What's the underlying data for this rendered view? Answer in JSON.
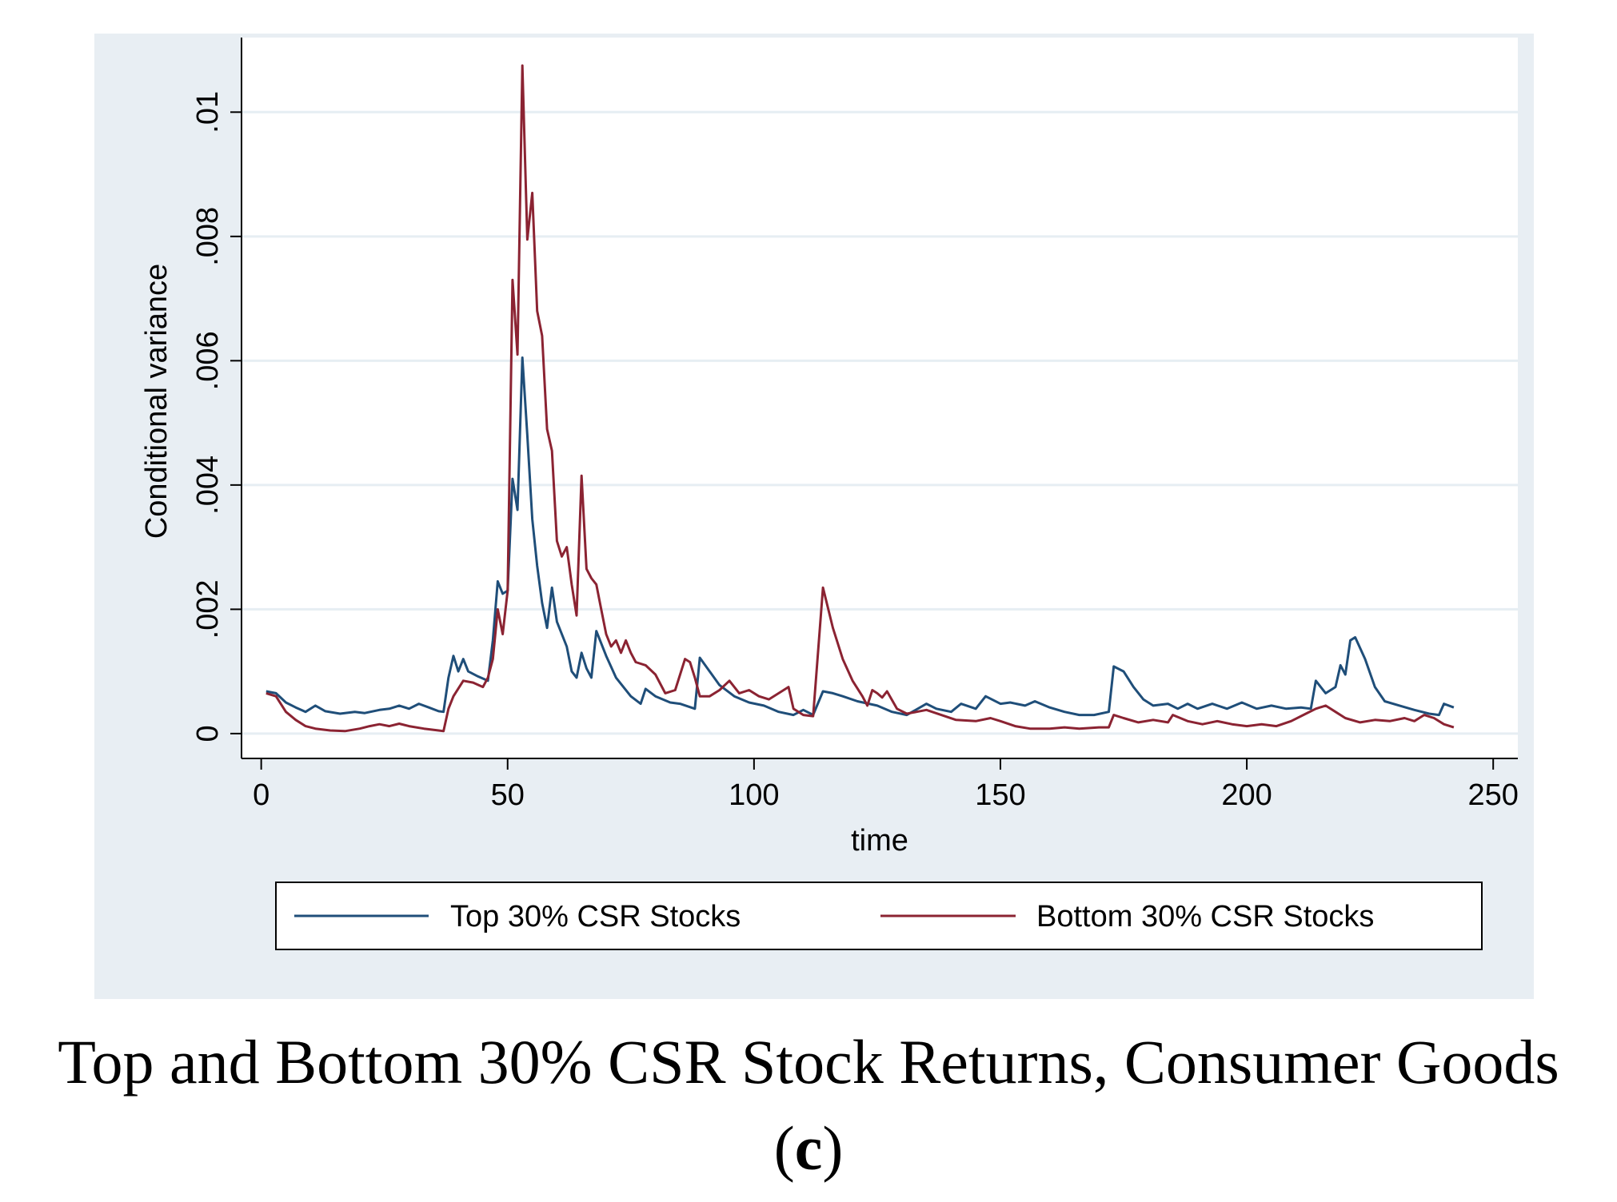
{
  "caption": {
    "title": "Top and Bottom 30% CSR Stock Returns, Consumer Goods",
    "label_open": "(",
    "label_letter": "c",
    "label_close": ")"
  },
  "colors": {
    "panel_bg": "#e8eef3",
    "plot_bg": "#ffffff",
    "grid": "#e6eef3",
    "top_series": "#1f4e79",
    "bottom_series": "#8b2332"
  },
  "chart_data": {
    "type": "line",
    "title": "",
    "xlabel": "time",
    "ylabel": "Conditional variance",
    "xlim": [
      -4,
      255
    ],
    "ylim": [
      -0.0004,
      0.0112
    ],
    "xticks": [
      0,
      50,
      100,
      150,
      200,
      250
    ],
    "xtick_labels": [
      "0",
      "50",
      "100",
      "150",
      "200",
      "250"
    ],
    "yticks": [
      0,
      0.002,
      0.004,
      0.006,
      0.008,
      0.01
    ],
    "ytick_labels": [
      "0",
      ".002",
      ".004",
      ".006",
      ".008",
      ".01"
    ],
    "grid": true,
    "legend_position": "bottom",
    "series": [
      {
        "name": "Top 30% CSR Stocks",
        "color": "#1f4e79",
        "points": [
          [
            1,
            0.00068
          ],
          [
            3,
            0.00065
          ],
          [
            5,
            0.0005
          ],
          [
            7,
            0.00042
          ],
          [
            9,
            0.00035
          ],
          [
            11,
            0.00045
          ],
          [
            13,
            0.00036
          ],
          [
            16,
            0.00032
          ],
          [
            19,
            0.00035
          ],
          [
            21,
            0.00033
          ],
          [
            24,
            0.00038
          ],
          [
            26,
            0.0004
          ],
          [
            28,
            0.00045
          ],
          [
            30,
            0.0004
          ],
          [
            32,
            0.00048
          ],
          [
            34,
            0.00042
          ],
          [
            36,
            0.00036
          ],
          [
            37,
            0.00035
          ],
          [
            38,
            0.0009
          ],
          [
            39,
            0.00125
          ],
          [
            40,
            0.001
          ],
          [
            41,
            0.0012
          ],
          [
            42,
            0.001
          ],
          [
            44,
            0.00092
          ],
          [
            46,
            0.00085
          ],
          [
            47,
            0.0015
          ],
          [
            48,
            0.00245
          ],
          [
            49,
            0.00225
          ],
          [
            50,
            0.0023
          ],
          [
            51,
            0.0041
          ],
          [
            52,
            0.0036
          ],
          [
            53,
            0.00605
          ],
          [
            54,
            0.0048
          ],
          [
            55,
            0.00345
          ],
          [
            56,
            0.0027
          ],
          [
            57,
            0.0021
          ],
          [
            58,
            0.0017
          ],
          [
            59,
            0.00235
          ],
          [
            60,
            0.0018
          ],
          [
            62,
            0.0014
          ],
          [
            63,
            0.001
          ],
          [
            64,
            0.0009
          ],
          [
            65,
            0.0013
          ],
          [
            66,
            0.00105
          ],
          [
            67,
            0.0009
          ],
          [
            68,
            0.00165
          ],
          [
            70,
            0.00125
          ],
          [
            72,
            0.0009
          ],
          [
            75,
            0.0006
          ],
          [
            77,
            0.00048
          ],
          [
            78,
            0.00072
          ],
          [
            80,
            0.0006
          ],
          [
            83,
            0.0005
          ],
          [
            85,
            0.00048
          ],
          [
            88,
            0.0004
          ],
          [
            89,
            0.00122
          ],
          [
            91,
            0.001
          ],
          [
            93,
            0.00078
          ],
          [
            96,
            0.0006
          ],
          [
            99,
            0.0005
          ],
          [
            102,
            0.00045
          ],
          [
            105,
            0.00035
          ],
          [
            108,
            0.0003
          ],
          [
            110,
            0.00038
          ],
          [
            112,
            0.0003
          ],
          [
            114,
            0.00068
          ],
          [
            116,
            0.00065
          ],
          [
            118,
            0.0006
          ],
          [
            121,
            0.00052
          ],
          [
            125,
            0.00045
          ],
          [
            128,
            0.00035
          ],
          [
            131,
            0.0003
          ],
          [
            135,
            0.00048
          ],
          [
            137,
            0.0004
          ],
          [
            140,
            0.00035
          ],
          [
            142,
            0.00048
          ],
          [
            145,
            0.0004
          ],
          [
            147,
            0.0006
          ],
          [
            150,
            0.00048
          ],
          [
            152,
            0.0005
          ],
          [
            155,
            0.00045
          ],
          [
            157,
            0.00052
          ],
          [
            160,
            0.00042
          ],
          [
            163,
            0.00035
          ],
          [
            166,
            0.0003
          ],
          [
            169,
            0.0003
          ],
          [
            172,
            0.00035
          ],
          [
            173,
            0.00108
          ],
          [
            175,
            0.001
          ],
          [
            177,
            0.00075
          ],
          [
            179,
            0.00055
          ],
          [
            181,
            0.00045
          ],
          [
            184,
            0.00048
          ],
          [
            186,
            0.0004
          ],
          [
            188,
            0.00048
          ],
          [
            190,
            0.0004
          ],
          [
            193,
            0.00048
          ],
          [
            196,
            0.0004
          ],
          [
            199,
            0.0005
          ],
          [
            202,
            0.0004
          ],
          [
            205,
            0.00045
          ],
          [
            208,
            0.0004
          ],
          [
            211,
            0.00042
          ],
          [
            213,
            0.0004
          ],
          [
            214,
            0.00085
          ],
          [
            216,
            0.00065
          ],
          [
            218,
            0.00075
          ],
          [
            219,
            0.0011
          ],
          [
            220,
            0.00095
          ],
          [
            221,
            0.0015
          ],
          [
            222,
            0.00155
          ],
          [
            224,
            0.0012
          ],
          [
            226,
            0.00075
          ],
          [
            228,
            0.00052
          ],
          [
            231,
            0.00045
          ],
          [
            234,
            0.00038
          ],
          [
            237,
            0.00032
          ],
          [
            239,
            0.0003
          ],
          [
            240,
            0.00048
          ],
          [
            242,
            0.00042
          ]
        ]
      },
      {
        "name": "Bottom 30% CSR Stocks",
        "color": "#8b2332",
        "points": [
          [
            1,
            0.00065
          ],
          [
            3,
            0.0006
          ],
          [
            5,
            0.00035
          ],
          [
            7,
            0.00022
          ],
          [
            9,
            0.00012
          ],
          [
            11,
            8e-05
          ],
          [
            14,
            5e-05
          ],
          [
            17,
            4e-05
          ],
          [
            20,
            8e-05
          ],
          [
            22,
            0.00012
          ],
          [
            24,
            0.00015
          ],
          [
            26,
            0.00012
          ],
          [
            28,
            0.00016
          ],
          [
            30,
            0.00012
          ],
          [
            33,
            8e-05
          ],
          [
            36,
            5e-05
          ],
          [
            37,
            4e-05
          ],
          [
            38,
            0.0004
          ],
          [
            39,
            0.0006
          ],
          [
            41,
            0.00085
          ],
          [
            43,
            0.00082
          ],
          [
            45,
            0.00075
          ],
          [
            46,
            0.0009
          ],
          [
            47,
            0.0012
          ],
          [
            48,
            0.002
          ],
          [
            49,
            0.0016
          ],
          [
            50,
            0.0023
          ],
          [
            51,
            0.0073
          ],
          [
            52,
            0.0061
          ],
          [
            53,
            0.01075
          ],
          [
            54,
            0.00795
          ],
          [
            55,
            0.0087
          ],
          [
            56,
            0.0068
          ],
          [
            57,
            0.0064
          ],
          [
            58,
            0.0049
          ],
          [
            59,
            0.00455
          ],
          [
            60,
            0.0031
          ],
          [
            61,
            0.00285
          ],
          [
            62,
            0.003
          ],
          [
            63,
            0.0024
          ],
          [
            64,
            0.0019
          ],
          [
            65,
            0.00415
          ],
          [
            66,
            0.00265
          ],
          [
            67,
            0.0025
          ],
          [
            68,
            0.0024
          ],
          [
            69,
            0.002
          ],
          [
            70,
            0.0016
          ],
          [
            71,
            0.0014
          ],
          [
            72,
            0.0015
          ],
          [
            73,
            0.0013
          ],
          [
            74,
            0.0015
          ],
          [
            75,
            0.0013
          ],
          [
            76,
            0.00115
          ],
          [
            78,
            0.0011
          ],
          [
            80,
            0.00095
          ],
          [
            82,
            0.00065
          ],
          [
            84,
            0.0007
          ],
          [
            86,
            0.0012
          ],
          [
            87,
            0.00115
          ],
          [
            88,
            0.0009
          ],
          [
            89,
            0.0006
          ],
          [
            91,
            0.0006
          ],
          [
            93,
            0.0007
          ],
          [
            95,
            0.00085
          ],
          [
            97,
            0.00065
          ],
          [
            99,
            0.0007
          ],
          [
            101,
            0.0006
          ],
          [
            103,
            0.00055
          ],
          [
            105,
            0.00065
          ],
          [
            107,
            0.00075
          ],
          [
            108,
            0.0004
          ],
          [
            110,
            0.0003
          ],
          [
            112,
            0.00028
          ],
          [
            114,
            0.00235
          ],
          [
            116,
            0.0017
          ],
          [
            118,
            0.0012
          ],
          [
            120,
            0.00085
          ],
          [
            122,
            0.0006
          ],
          [
            123,
            0.00045
          ],
          [
            124,
            0.0007
          ],
          [
            125,
            0.00065
          ],
          [
            126,
            0.00058
          ],
          [
            127,
            0.00068
          ],
          [
            129,
            0.0004
          ],
          [
            131,
            0.00032
          ],
          [
            133,
            0.00035
          ],
          [
            135,
            0.00038
          ],
          [
            138,
            0.0003
          ],
          [
            141,
            0.00022
          ],
          [
            145,
            0.0002
          ],
          [
            148,
            0.00025
          ],
          [
            150,
            0.0002
          ],
          [
            153,
            0.00012
          ],
          [
            156,
            8e-05
          ],
          [
            160,
            8e-05
          ],
          [
            163,
            0.0001
          ],
          [
            166,
            8e-05
          ],
          [
            170,
            0.0001
          ],
          [
            172,
            0.0001
          ],
          [
            173,
            0.0003
          ],
          [
            175,
            0.00025
          ],
          [
            178,
            0.00018
          ],
          [
            181,
            0.00022
          ],
          [
            184,
            0.00018
          ],
          [
            185,
            0.0003
          ],
          [
            188,
            0.0002
          ],
          [
            191,
            0.00015
          ],
          [
            194,
            0.0002
          ],
          [
            197,
            0.00015
          ],
          [
            200,
            0.00012
          ],
          [
            203,
            0.00015
          ],
          [
            206,
            0.00012
          ],
          [
            209,
            0.0002
          ],
          [
            212,
            0.00032
          ],
          [
            214,
            0.0004
          ],
          [
            216,
            0.00045
          ],
          [
            218,
            0.00035
          ],
          [
            220,
            0.00025
          ],
          [
            223,
            0.00018
          ],
          [
            226,
            0.00022
          ],
          [
            229,
            0.0002
          ],
          [
            232,
            0.00025
          ],
          [
            234,
            0.0002
          ],
          [
            236,
            0.0003
          ],
          [
            238,
            0.00025
          ],
          [
            240,
            0.00015
          ],
          [
            242,
            0.0001
          ]
        ]
      }
    ]
  }
}
